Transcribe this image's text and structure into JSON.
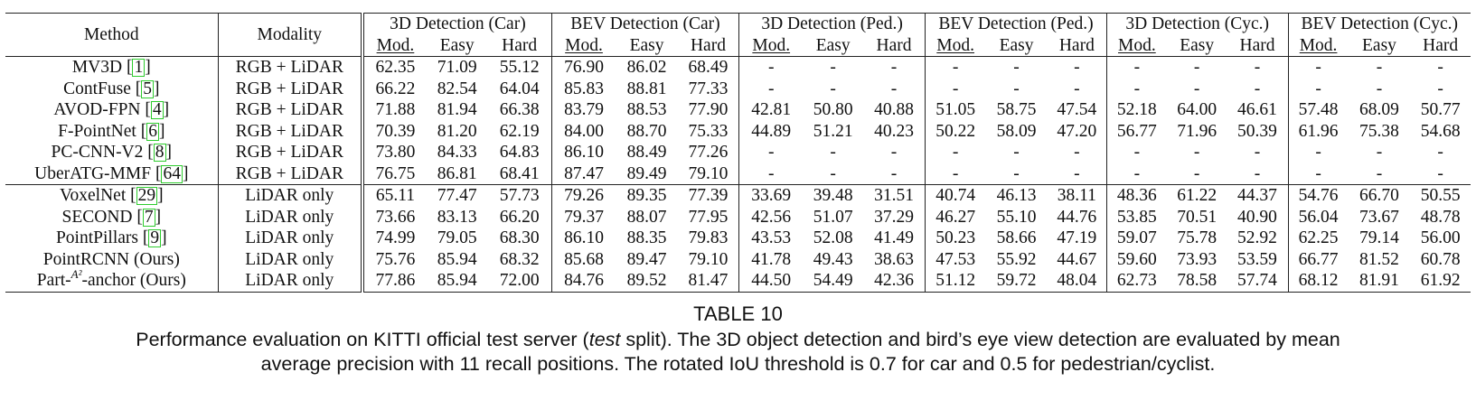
{
  "table": {
    "col_method": "Method",
    "col_modality": "Modality",
    "groups": [
      "3D Detection (Car)",
      "BEV Detection (Car)",
      "3D Detection (Ped.)",
      "BEV Detection (Ped.)",
      "3D Detection (Cyc.)",
      "BEV Detection (Cyc.)"
    ],
    "sub": [
      "Mod.",
      "Easy",
      "Hard"
    ],
    "rows": [
      {
        "name": "MV3D",
        "ref": "1",
        "modality": "RGB + LiDAR",
        "vals": [
          "62.35",
          "71.09",
          "55.12",
          "76.90",
          "86.02",
          "68.49",
          "-",
          "-",
          "-",
          "-",
          "-",
          "-",
          "-",
          "-",
          "-",
          "-",
          "-",
          "-"
        ],
        "bold": []
      },
      {
        "name": "ContFuse",
        "ref": "5",
        "modality": "RGB + LiDAR",
        "vals": [
          "66.22",
          "82.54",
          "64.04",
          "85.83",
          "88.81",
          "77.33",
          "-",
          "-",
          "-",
          "-",
          "-",
          "-",
          "-",
          "-",
          "-",
          "-",
          "-",
          "-"
        ],
        "bold": []
      },
      {
        "name": "AVOD-FPN",
        "ref": "4",
        "modality": "RGB + LiDAR",
        "vals": [
          "71.88",
          "81.94",
          "66.38",
          "83.79",
          "88.53",
          "77.90",
          "42.81",
          "50.80",
          "40.88",
          "51.05",
          "58.75",
          "47.54",
          "52.18",
          "64.00",
          "46.61",
          "57.48",
          "68.09",
          "50.77"
        ],
        "bold": []
      },
      {
        "name": "F-PointNet",
        "ref": "6",
        "modality": "RGB + LiDAR",
        "vals": [
          "70.39",
          "81.20",
          "62.19",
          "84.00",
          "88.70",
          "75.33",
          "44.89",
          "51.21",
          "40.23",
          "50.22",
          "58.09",
          "47.20",
          "56.77",
          "71.96",
          "50.39",
          "61.96",
          "75.38",
          "54.68"
        ],
        "bold": []
      },
      {
        "name": "PC-CNN-V2",
        "ref": "8",
        "modality": "RGB + LiDAR",
        "vals": [
          "73.80",
          "84.33",
          "64.83",
          "86.10",
          "88.49",
          "77.26",
          "-",
          "-",
          "-",
          "-",
          "-",
          "-",
          "-",
          "-",
          "-",
          "-",
          "-",
          "-"
        ],
        "bold": []
      },
      {
        "name": "UberATG-MMF",
        "ref": "64",
        "modality": "RGB + LiDAR",
        "vals": [
          "76.75",
          "86.81",
          "68.41",
          "87.47",
          "89.49",
          "79.10",
          "-",
          "-",
          "-",
          "-",
          "-",
          "-",
          "-",
          "-",
          "-",
          "-",
          "-",
          "-"
        ],
        "bold": []
      },
      {
        "name": "VoxelNet",
        "ref": "29",
        "modality": "LiDAR only",
        "vals": [
          "65.11",
          "77.47",
          "57.73",
          "79.26",
          "89.35",
          "77.39",
          "33.69",
          "39.48",
          "31.51",
          "40.74",
          "46.13",
          "38.11",
          "48.36",
          "61.22",
          "44.37",
          "54.76",
          "66.70",
          "50.55"
        ],
        "bold": []
      },
      {
        "name": "SECOND",
        "ref": "7",
        "modality": "LiDAR only",
        "vals": [
          "73.66",
          "83.13",
          "66.20",
          "79.37",
          "88.07",
          "77.95",
          "42.56",
          "51.07",
          "37.29",
          "46.27",
          "55.10",
          "44.76",
          "53.85",
          "70.51",
          "40.90",
          "56.04",
          "73.67",
          "48.78"
        ],
        "bold": []
      },
      {
        "name": "PointPillars",
        "ref": "9",
        "modality": "LiDAR only",
        "vals": [
          "74.99",
          "79.05",
          "68.30",
          "86.10",
          "88.35",
          "79.83",
          "43.53",
          "52.08",
          "41.49",
          "50.23",
          "58.66",
          "47.19",
          "59.07",
          "75.78",
          "52.92",
          "62.25",
          "79.14",
          "56.00"
        ],
        "bold": [
          3
        ]
      },
      {
        "name": "PointRCNN (Ours)",
        "ref": "",
        "modality": "LiDAR only",
        "vals": [
          "75.76",
          "85.94",
          "68.32",
          "85.68",
          "89.47",
          "79.10",
          "41.78",
          "49.43",
          "38.63",
          "47.53",
          "55.92",
          "44.67",
          "59.60",
          "73.93",
          "53.59",
          "66.77",
          "81.52",
          "60.78"
        ],
        "bold": [
          1
        ]
      },
      {
        "name": "Part-",
        "name_sup": "A²",
        "name_tail": "-anchor (Ours)",
        "ref": "",
        "modality": "LiDAR only",
        "vals": [
          "77.86",
          "85.94",
          "72.00",
          "84.76",
          "89.52",
          "81.47",
          "44.50",
          "54.49",
          "42.36",
          "51.12",
          "59.72",
          "48.04",
          "62.73",
          "78.58",
          "57.74",
          "68.12",
          "81.91",
          "61.92"
        ],
        "bold": [
          0,
          1,
          2,
          4,
          5,
          6,
          7,
          8,
          9,
          10,
          11,
          12,
          13,
          14,
          15,
          16,
          17
        ]
      }
    ]
  },
  "caption": {
    "title": "TABLE 10",
    "line1_pre": "Performance evaluation on KITTI official test server (",
    "line1_em": "test",
    "line1_post": " split). The 3D object detection and bird’s eye view detection are evaluated by mean",
    "line2": "average precision with 11 recall positions. The rotated IoU threshold is 0.7 for car and 0.5 for pedestrian/cyclist."
  }
}
